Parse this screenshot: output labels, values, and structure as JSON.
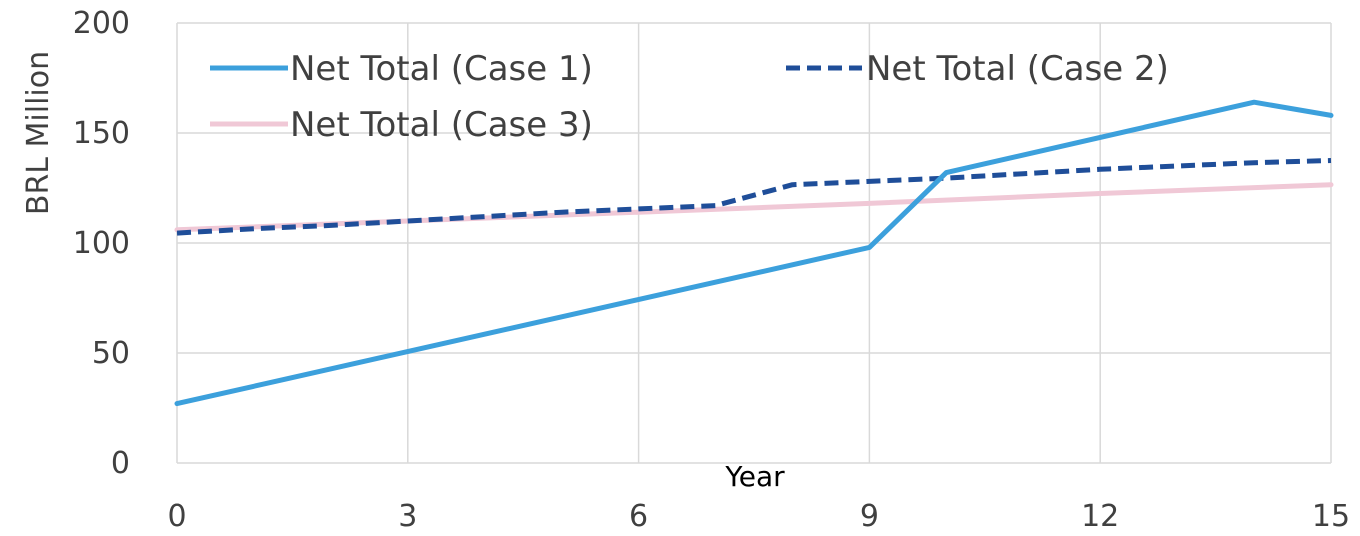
{
  "chart_data": {
    "type": "line",
    "title": "",
    "xlabel": "Year",
    "ylabel": "BRL Million",
    "xlim": [
      0,
      15
    ],
    "ylim": [
      0,
      200
    ],
    "x_ticks": [
      "0",
      "3",
      "6",
      "9",
      "12",
      "15"
    ],
    "y_ticks": [
      "0",
      "50",
      "100",
      "150",
      "200"
    ],
    "grid": true,
    "legend_position": "top-left, inside plot",
    "series": [
      {
        "name": "Net Total (Case 1)",
        "color": "#3ca0dc",
        "style": "solid",
        "x": [
          0,
          9,
          10,
          14,
          15
        ],
        "y": [
          27,
          98,
          132,
          164,
          158
        ]
      },
      {
        "name": "Net Total (Case 2)",
        "color": "#1f4e99",
        "style": "dashed",
        "x": [
          0,
          1,
          2,
          3,
          4,
          5,
          6,
          7,
          8,
          9,
          10,
          11,
          12,
          13,
          14,
          15
        ],
        "y": [
          104.5,
          106.5,
          108,
          110,
          112,
          114,
          115.5,
          117,
          126.5,
          128,
          129.5,
          131.5,
          133.5,
          135,
          136.5,
          137.5
        ]
      },
      {
        "name": "Net Total (Case 3)",
        "color": "#f0c8d6",
        "style": "solid",
        "x": [
          0,
          3,
          6,
          9,
          12,
          15
        ],
        "y": [
          106,
          110,
          114,
          118,
          122.5,
          126.5
        ]
      }
    ]
  }
}
